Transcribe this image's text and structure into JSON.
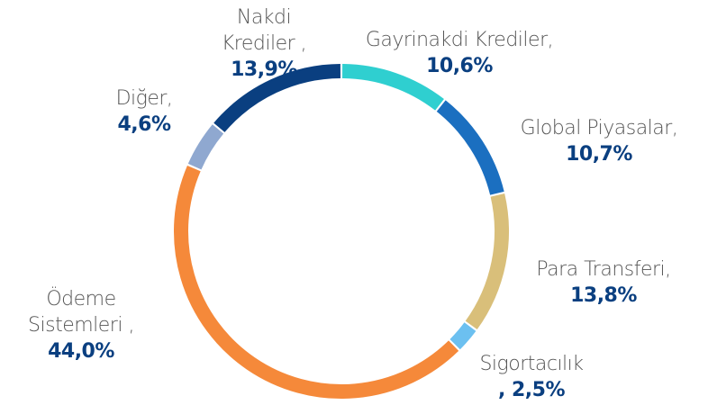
{
  "chart_data": {
    "type": "donut",
    "categories": [
      "Gayrinakdi Krediler,",
      "Global Piyasalar,",
      "Para Transferi,",
      "Sigortacılık",
      "Ödeme Sistemleri ,",
      "Diğer,",
      "Nakdi Krediler ,"
    ],
    "values": [
      10.6,
      10.7,
      13.8,
      2.5,
      44.0,
      4.6,
      13.9
    ],
    "value_labels": [
      "10,6%",
      "10,7%",
      "13,8%",
      ", 2,5%",
      "44,0%",
      "4,6%",
      "13,9%"
    ],
    "colors": [
      "#2fcfd0",
      "#1b6fc0",
      "#d9bf7a",
      "#6cc0f0",
      "#f5893a",
      "#8fa8d0",
      "#0a3f80"
    ]
  }
}
